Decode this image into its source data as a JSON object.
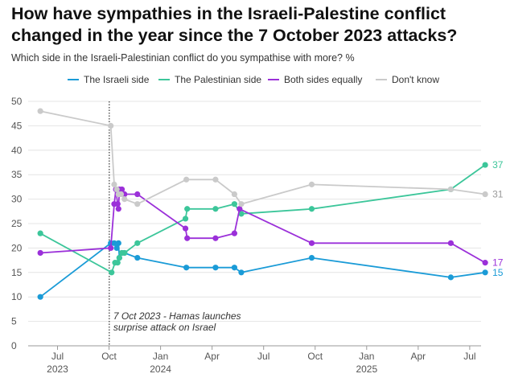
{
  "title": "How have sympathies in the Israeli-Palestine conflict changed in the year since the 7 October 2023 attacks?",
  "subtitle": "Which side in the Israeli-Palestinian conflict do you sympathise with more? %",
  "chart_data": {
    "type": "line",
    "title": "How have sympathies in the Israeli-Palestine conflict changed in the year since the 7 October 2023 attacks?",
    "subtitle": "Which side in the Israeli-Palestinian conflict do you sympathise with more? %",
    "xlabel": "",
    "ylabel": "",
    "ylim": [
      0,
      50
    ],
    "yticks": [
      0,
      5,
      10,
      15,
      20,
      25,
      30,
      35,
      40,
      45,
      50
    ],
    "x_months_range": [
      -1,
      20
    ],
    "xticks": [
      {
        "month": 0,
        "label": "Jul",
        "year": "2023"
      },
      {
        "month": 3,
        "label": "Oct",
        "year": ""
      },
      {
        "month": 6,
        "label": "Jan",
        "year": "2024"
      },
      {
        "month": 9,
        "label": "Apr",
        "year": ""
      },
      {
        "month": 12,
        "label": "Jul",
        "year": ""
      },
      {
        "month": 15,
        "label": "Oct",
        "year": ""
      },
      {
        "month": 18,
        "label": "Jan",
        "year": "2025"
      },
      {
        "month": 21,
        "label": "Apr",
        "year": ""
      },
      {
        "month": 24,
        "label": "Jul",
        "year": ""
      }
    ],
    "annotation": {
      "month": 3.2,
      "lines": [
        "7 Oct 2023 - Hamas launches",
        "surprise attack on Israel"
      ]
    },
    "series": [
      {
        "name": "The Israeli side",
        "color": "#1a9bd7",
        "end_label": "15",
        "points": [
          [
            -1,
            10
          ],
          [
            3.1,
            21
          ],
          [
            3.3,
            21
          ],
          [
            3.45,
            20
          ],
          [
            3.55,
            21
          ],
          [
            3.6,
            18
          ],
          [
            3.75,
            19
          ],
          [
            3.9,
            19
          ],
          [
            4.65,
            18
          ],
          [
            7.5,
            16
          ],
          [
            9.2,
            16
          ],
          [
            10.3,
            16
          ],
          [
            10.7,
            15
          ],
          [
            14.8,
            18
          ],
          [
            22.9,
            14
          ],
          [
            24.9,
            15
          ]
        ]
      },
      {
        "name": "The Palestinian side",
        "color": "#3cc69a",
        "end_label": "37",
        "points": [
          [
            -1,
            23
          ],
          [
            3.15,
            15
          ],
          [
            3.35,
            17
          ],
          [
            3.5,
            17
          ],
          [
            3.6,
            18
          ],
          [
            3.75,
            19
          ],
          [
            3.9,
            19
          ],
          [
            4.65,
            21
          ],
          [
            7.45,
            26
          ],
          [
            7.55,
            28
          ],
          [
            9.2,
            28
          ],
          [
            10.3,
            29
          ],
          [
            10.7,
            27
          ],
          [
            14.8,
            28
          ],
          [
            22.9,
            32
          ],
          [
            24.9,
            37
          ]
        ]
      },
      {
        "name": "Both sides equally",
        "color": "#9b30d9",
        "end_label": "17",
        "points": [
          [
            -1,
            19
          ],
          [
            3.1,
            20
          ],
          [
            3.3,
            29
          ],
          [
            3.4,
            32
          ],
          [
            3.5,
            29
          ],
          [
            3.55,
            28
          ],
          [
            3.6,
            32
          ],
          [
            3.75,
            32
          ],
          [
            3.9,
            31
          ],
          [
            4.65,
            31
          ],
          [
            7.45,
            24
          ],
          [
            7.55,
            22
          ],
          [
            9.2,
            22
          ],
          [
            10.3,
            23
          ],
          [
            10.6,
            28
          ],
          [
            14.8,
            21
          ],
          [
            22.9,
            21
          ],
          [
            24.9,
            17
          ]
        ]
      },
      {
        "name": "Don't know",
        "color": "#cacaca",
        "end_label": "31",
        "points": [
          [
            -1,
            48
          ],
          [
            3.1,
            45
          ],
          [
            3.3,
            33
          ],
          [
            3.45,
            32
          ],
          [
            3.55,
            31
          ],
          [
            3.7,
            31
          ],
          [
            3.9,
            30
          ],
          [
            4.65,
            29
          ],
          [
            7.5,
            34
          ],
          [
            9.2,
            34
          ],
          [
            10.3,
            31
          ],
          [
            10.7,
            29
          ],
          [
            14.8,
            33
          ],
          [
            22.9,
            32
          ],
          [
            24.9,
            31
          ]
        ]
      }
    ]
  }
}
